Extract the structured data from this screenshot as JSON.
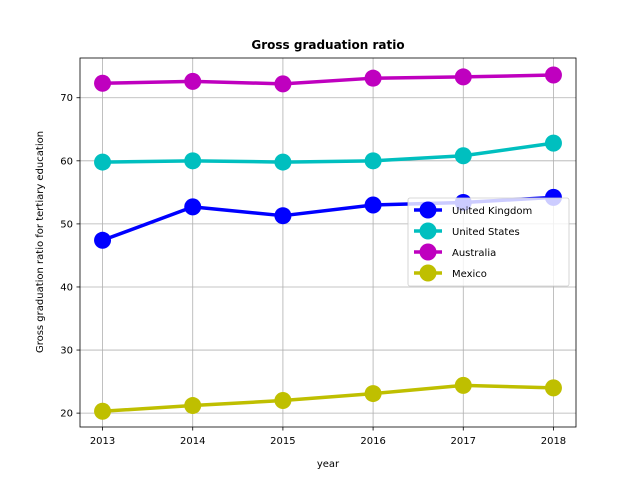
{
  "chart_data": {
    "type": "line",
    "title": "Gross graduation ratio",
    "xlabel": "year",
    "ylabel": "Gross graduation ratio for tertiary education",
    "x": [
      2013,
      2014,
      2015,
      2016,
      2017,
      2018
    ],
    "x_tick_labels": [
      "2013",
      "2014",
      "2015",
      "2016",
      "2017",
      "2018"
    ],
    "y_ticks": [
      20,
      30,
      40,
      50,
      60,
      70
    ],
    "y_tick_labels": [
      "20",
      "30",
      "40",
      "50",
      "60",
      "70"
    ],
    "xlim": [
      2012.75,
      2018.25
    ],
    "ylim": [
      17.8,
      76.3
    ],
    "grid": true,
    "legend_position": "center-right",
    "series": [
      {
        "name": "United Kingdom",
        "color": "#0000ff",
        "values": [
          47.4,
          52.7,
          51.3,
          53.0,
          53.4,
          54.2
        ]
      },
      {
        "name": "United States",
        "color": "#00bfbf",
        "values": [
          59.8,
          60.0,
          59.8,
          60.0,
          60.8,
          62.8
        ]
      },
      {
        "name": "Australia",
        "color": "#bf00bf",
        "values": [
          72.3,
          72.6,
          72.2,
          73.1,
          73.3,
          73.6
        ]
      },
      {
        "name": "Mexico",
        "color": "#bfbf00",
        "values": [
          20.3,
          21.2,
          22.0,
          23.1,
          24.4,
          24.0
        ]
      }
    ]
  }
}
